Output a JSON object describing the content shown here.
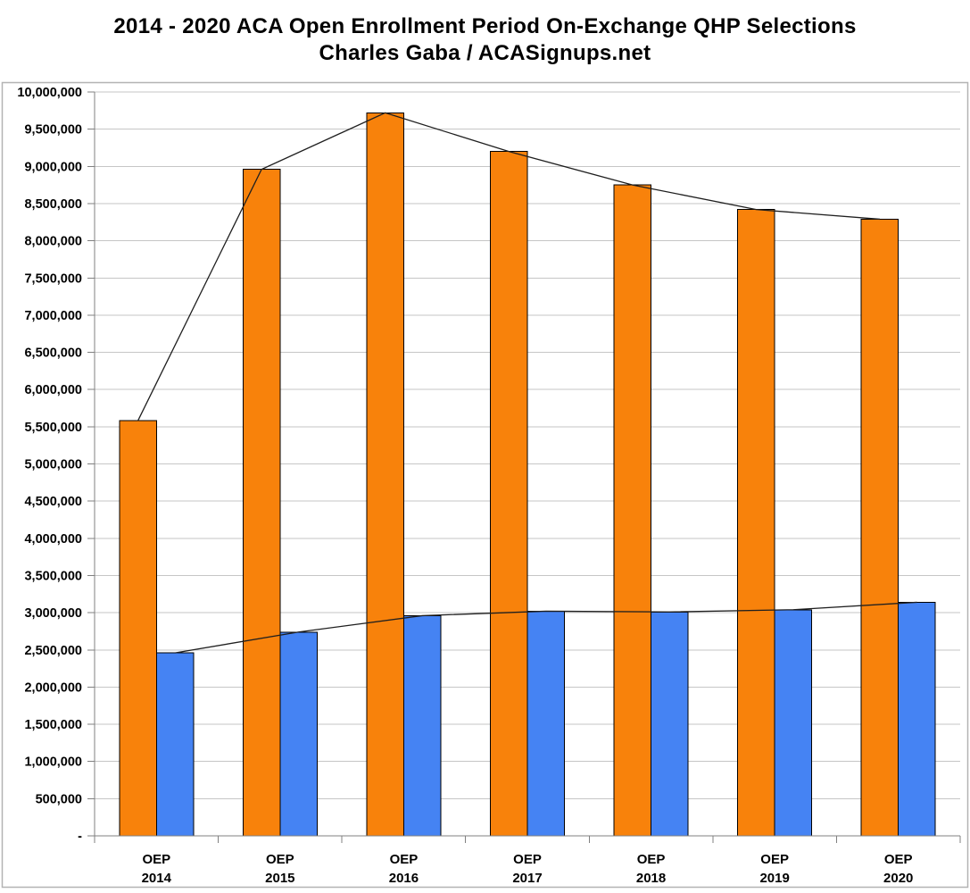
{
  "title": {
    "line1": "2014 - 2020 ACA Open Enrollment Period On-Exchange QHP Selections",
    "line2": "Charles Gaba / ACASignups.net"
  },
  "chart_data": {
    "type": "bar",
    "title": "2014 - 2020 ACA Open Enrollment Period On-Exchange QHP Selections",
    "subtitle": "Charles Gaba / ACASignups.net",
    "categories": [
      {
        "line1": "OEP",
        "line2": "2014"
      },
      {
        "line1": "OEP",
        "line2": "2015"
      },
      {
        "line1": "OEP",
        "line2": "2016"
      },
      {
        "line1": "OEP",
        "line2": "2017"
      },
      {
        "line1": "OEP",
        "line2": "2018"
      },
      {
        "line1": "OEP",
        "line2": "2019"
      },
      {
        "line1": "OEP",
        "line2": "2020"
      }
    ],
    "series": [
      {
        "name": "orange-bars",
        "color": "#F8820B",
        "border_color": "#000000",
        "values": [
          5580000,
          8960000,
          9720000,
          9200000,
          8750000,
          8420000,
          8290000
        ]
      },
      {
        "name": "blue-bars",
        "color": "#4583F3",
        "border_color": "#000000",
        "values": [
          2460000,
          2740000,
          2960000,
          3020000,
          3010000,
          3040000,
          3140000
        ]
      }
    ],
    "line_overlays": [
      {
        "traces_series": "orange-bars",
        "color": "#1f1f1f"
      },
      {
        "traces_series": "blue-bars",
        "color": "#1f1f1f"
      }
    ],
    "ylim": [
      0,
      10000000
    ],
    "ytick_interval": 500000,
    "y_tick_labels": [
      "10,000,000",
      "9,500,000",
      "9,000,000",
      "8,500,000",
      "8,000,000",
      "7,500,000",
      "7,000,000",
      "6,500,000",
      "6,000,000",
      "5,500,000",
      "5,000,000",
      "4,500,000",
      "4,000,000",
      "3,500,000",
      "3,000,000",
      "2,500,000",
      "2,000,000",
      "1,500,000",
      "1,000,000",
      "500,000",
      "-"
    ],
    "zero_tick_label": "-",
    "grid": true,
    "legend": false
  },
  "colors": {
    "background": "#FFFFFF",
    "gridline": "#C6C6C6",
    "axis": "#808080",
    "frame_border": "#B3B3B3",
    "trend_line": "#1f1f1f",
    "text": "#000000"
  }
}
